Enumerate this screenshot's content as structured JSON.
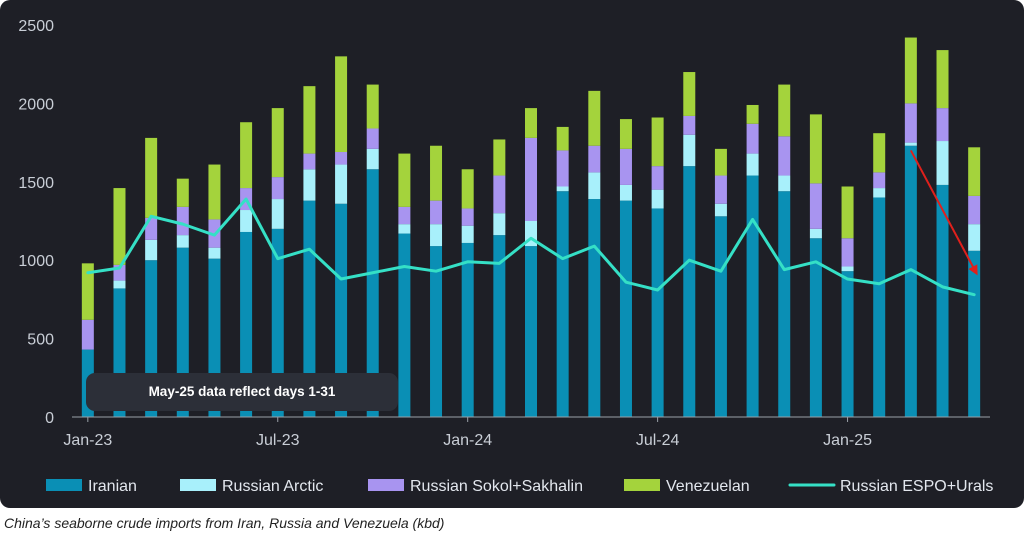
{
  "chart_data": {
    "type": "bar",
    "stacked": true,
    "categories": [
      "Jan-23",
      "Feb-23",
      "Mar-23",
      "Apr-23",
      "May-23",
      "Jun-23",
      "Jul-23",
      "Aug-23",
      "Sep-23",
      "Oct-23",
      "Nov-23",
      "Dec-23",
      "Jan-24",
      "Feb-24",
      "Mar-24",
      "Apr-24",
      "May-24",
      "Jun-24",
      "Jul-24",
      "Aug-24",
      "Sep-24",
      "Oct-24",
      "Nov-24",
      "Dec-24",
      "Jan-25",
      "Feb-25",
      "Mar-25",
      "Apr-25",
      "May-25"
    ],
    "x_tick_labels": [
      {
        "index": 0,
        "label": "Jan-23"
      },
      {
        "index": 6,
        "label": "Jul-23"
      },
      {
        "index": 12,
        "label": "Jan-24"
      },
      {
        "index": 18,
        "label": "Jul-24"
      },
      {
        "index": 24,
        "label": "Jan-25"
      }
    ],
    "y_ticks": [
      0,
      500,
      1000,
      1500,
      2000,
      2500
    ],
    "ylim": [
      0,
      2500
    ],
    "grid": false,
    "legend_position": "bottom",
    "series": [
      {
        "name": "Iranian",
        "color": "#0a8fb5",
        "values": [
          430,
          820,
          1000,
          1080,
          1010,
          1180,
          1200,
          1380,
          1360,
          1580,
          1170,
          1090,
          1110,
          1160,
          1090,
          1440,
          1390,
          1380,
          1330,
          1600,
          1280,
          1540,
          1440,
          1140,
          930,
          1400,
          1730,
          1480,
          1060
        ]
      },
      {
        "name": "Russian Arctic",
        "color": "#a8f0fb",
        "values": [
          0,
          50,
          130,
          80,
          70,
          140,
          190,
          200,
          250,
          130,
          60,
          140,
          110,
          140,
          160,
          30,
          170,
          100,
          120,
          200,
          80,
          140,
          100,
          60,
          30,
          60,
          20,
          280,
          170
        ]
      },
      {
        "name": "Russian Sokol+Sakhalin",
        "color": "#a894f0",
        "values": [
          190,
          100,
          140,
          180,
          180,
          140,
          140,
          100,
          80,
          130,
          110,
          150,
          110,
          240,
          530,
          230,
          170,
          230,
          150,
          120,
          180,
          190,
          250,
          290,
          180,
          100,
          250,
          210,
          180
        ]
      },
      {
        "name": "Venezuelan",
        "color": "#a4d33c",
        "values": [
          360,
          490,
          510,
          180,
          350,
          420,
          440,
          430,
          610,
          280,
          340,
          350,
          250,
          230,
          190,
          150,
          350,
          190,
          310,
          280,
          170,
          120,
          330,
          440,
          330,
          250,
          420,
          370,
          310
        ]
      },
      {
        "name": "Russian ESPO+Urals",
        "type": "line",
        "color": "#35e0c6",
        "values": [
          920,
          950,
          1280,
          1230,
          1160,
          1390,
          1010,
          1070,
          880,
          920,
          960,
          930,
          990,
          980,
          1140,
          1010,
          1090,
          860,
          810,
          1000,
          930,
          1260,
          940,
          990,
          880,
          850,
          940,
          830,
          780
        ]
      }
    ],
    "annotations": [
      {
        "text": "May-25 data reflect days 1-31"
      }
    ],
    "arrow": {
      "color": "#e0201c",
      "from": {
        "x": "Mar-25",
        "y": 1700
      },
      "to": {
        "x": "May-25",
        "y": 920
      }
    }
  },
  "caption": "China’s seaborne crude imports from Iran, Russia and Venezuela (kbd)"
}
